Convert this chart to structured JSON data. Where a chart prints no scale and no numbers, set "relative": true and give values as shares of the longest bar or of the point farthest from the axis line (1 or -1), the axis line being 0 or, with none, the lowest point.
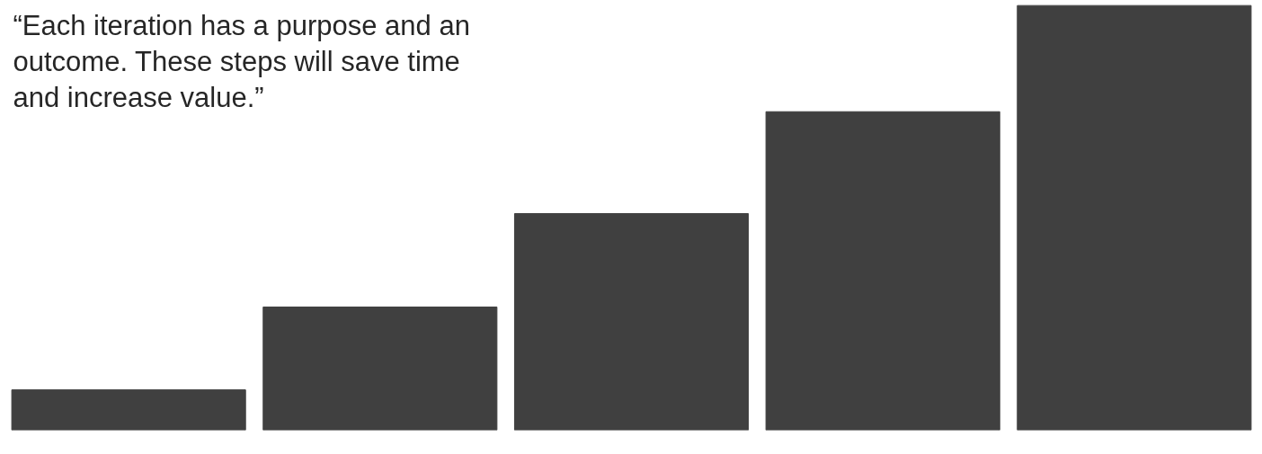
{
  "chart_data": {
    "type": "bar",
    "relative": true,
    "title": "“Each iteration has a purpose and an outcome. These steps will save time and increase value.”",
    "categories": [
      null,
      null,
      null,
      null,
      null
    ],
    "series": [
      {
        "color": "#404040",
        "values": [
          0.095,
          0.29,
          0.51,
          0.75,
          1
        ]
      }
    ]
  }
}
